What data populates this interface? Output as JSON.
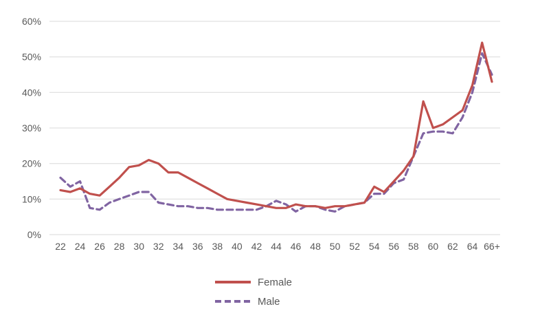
{
  "chart_data": {
    "type": "line",
    "title": "",
    "xlabel": "",
    "ylabel": "",
    "ylim": [
      0,
      60
    ],
    "grid": true,
    "legend_position": "bottom",
    "x": [
      22,
      23,
      24,
      25,
      26,
      27,
      28,
      29,
      30,
      31,
      32,
      33,
      34,
      35,
      36,
      37,
      38,
      39,
      40,
      41,
      42,
      43,
      44,
      45,
      46,
      47,
      48,
      49,
      50,
      51,
      52,
      53,
      54,
      55,
      56,
      57,
      58,
      59,
      60,
      61,
      62,
      63,
      64,
      65,
      66
    ],
    "x_ticks": [
      {
        "label": "22",
        "value": 22
      },
      {
        "label": "24",
        "value": 24
      },
      {
        "label": "26",
        "value": 26
      },
      {
        "label": "28",
        "value": 28
      },
      {
        "label": "30",
        "value": 30
      },
      {
        "label": "32",
        "value": 32
      },
      {
        "label": "34",
        "value": 34
      },
      {
        "label": "36",
        "value": 36
      },
      {
        "label": "38",
        "value": 38
      },
      {
        "label": "40",
        "value": 40
      },
      {
        "label": "42",
        "value": 42
      },
      {
        "label": "44",
        "value": 44
      },
      {
        "label": "46",
        "value": 46
      },
      {
        "label": "48",
        "value": 48
      },
      {
        "label": "50",
        "value": 50
      },
      {
        "label": "52",
        "value": 52
      },
      {
        "label": "54",
        "value": 54
      },
      {
        "label": "56",
        "value": 56
      },
      {
        "label": "58",
        "value": 58
      },
      {
        "label": "60",
        "value": 60
      },
      {
        "label": "62",
        "value": 62
      },
      {
        "label": "64",
        "value": 64
      },
      {
        "label": "66+",
        "value": 66
      }
    ],
    "y_ticks": [
      {
        "label": "0%",
        "value": 0
      },
      {
        "label": "10%",
        "value": 10
      },
      {
        "label": "20%",
        "value": 20
      },
      {
        "label": "30%",
        "value": 30
      },
      {
        "label": "40%",
        "value": 40
      },
      {
        "label": "50%",
        "value": 50
      },
      {
        "label": "60%",
        "value": 60
      }
    ],
    "series": [
      {
        "name": "Female",
        "color": "#C0504D",
        "dash": "solid",
        "values": [
          12.5,
          12,
          13,
          11.5,
          11,
          13.5,
          16,
          19,
          19.5,
          21,
          20,
          17.5,
          17.5,
          16,
          14.5,
          13,
          11.5,
          10,
          9.5,
          9,
          8.5,
          8,
          7.5,
          7.5,
          8.5,
          8,
          8,
          7.5,
          8,
          8,
          8.5,
          9,
          13.5,
          12,
          15,
          18,
          22,
          37.5,
          30,
          31,
          33,
          35,
          42,
          54,
          43
        ]
      },
      {
        "name": "Male",
        "color": "#8064A2",
        "dash": "dashed",
        "values": [
          16,
          13.5,
          15,
          7.5,
          7,
          9,
          10,
          11,
          12,
          12,
          9,
          8.5,
          8,
          8,
          7.5,
          7.5,
          7,
          7,
          7,
          7,
          7,
          8,
          9.5,
          8.5,
          6.5,
          8,
          8,
          7,
          6.5,
          8,
          8.5,
          9,
          11.5,
          11.5,
          14.5,
          15.5,
          22,
          28.5,
          29,
          29,
          28.5,
          33,
          40,
          51,
          45
        ]
      }
    ]
  },
  "colors": {
    "gridline": "#D9D9D9",
    "tick_text": "#595959",
    "female": "#C0504D",
    "male": "#8064A2",
    "background": "#FFFFFF"
  }
}
